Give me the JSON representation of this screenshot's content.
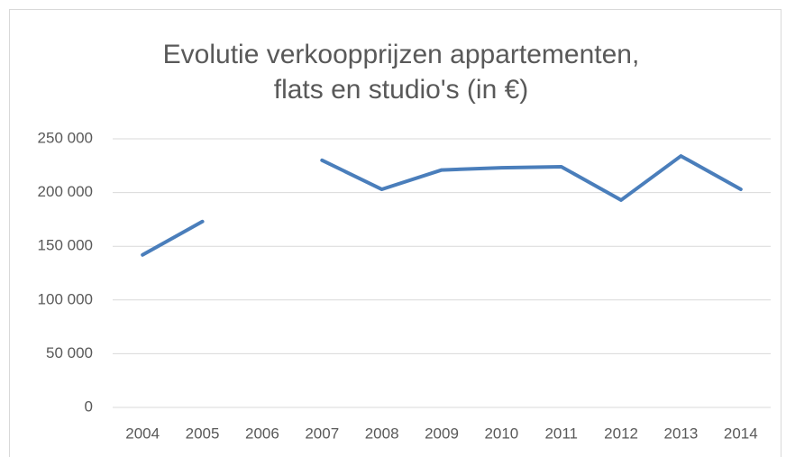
{
  "chart_data": {
    "type": "line",
    "title": [
      "Evolutie verkoopprijzen appartementen,",
      "flats en studio's (in €)"
    ],
    "categories": [
      "2004",
      "2005",
      "2006",
      "2007",
      "2008",
      "2009",
      "2010",
      "2011",
      "2012",
      "2013",
      "2014"
    ],
    "values": [
      142000,
      173000,
      null,
      230000,
      203000,
      221000,
      223000,
      224000,
      193000,
      234000,
      203000
    ],
    "color": "#4a7ebb",
    "ylim": [
      0,
      250000
    ],
    "yticks": [
      {
        "value": 0,
        "label": "0"
      },
      {
        "value": 50000,
        "label": "50 000"
      },
      {
        "value": 100000,
        "label": "100 000"
      },
      {
        "value": 150000,
        "label": "150 000"
      },
      {
        "value": 200000,
        "label": "200 000"
      },
      {
        "value": 250000,
        "label": "250 000"
      }
    ],
    "grid": true
  }
}
